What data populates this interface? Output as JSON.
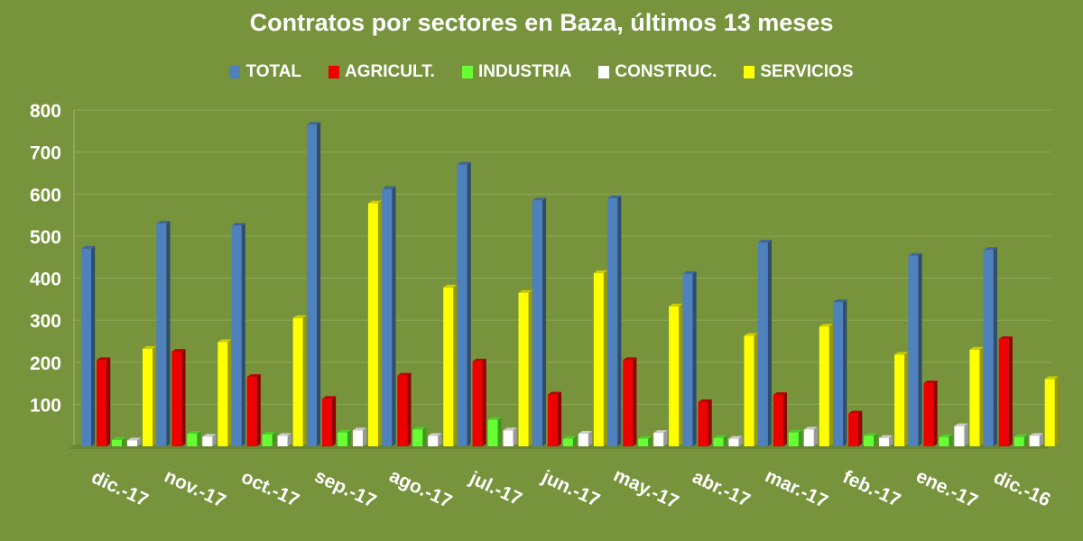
{
  "chart_data": {
    "type": "bar",
    "title": "Contratos por sectores en Baza, últimos 13 meses",
    "categories": [
      "dic.-17",
      "nov.-17",
      "oct.-17",
      "sep.-17",
      "ago.-17",
      "jul.-17",
      "jun.-17",
      "may.-17",
      "abr.-17",
      "mar.-17",
      "feb.-17",
      "ene.-17",
      "dic.-16"
    ],
    "series": [
      {
        "name": "TOTAL",
        "color": "#4f81bd",
        "values": [
          470,
          530,
          525,
          765,
          612,
          670,
          585,
          590,
          410,
          485,
          343,
          453,
          467
        ]
      },
      {
        "name": "AGRICULT.",
        "color": "#ee0000",
        "values": [
          205,
          225,
          165,
          113,
          168,
          202,
          123,
          205,
          105,
          122,
          78,
          150,
          255
        ]
      },
      {
        "name": "INDUSTRIA",
        "color": "#66ff33",
        "values": [
          15,
          30,
          28,
          33,
          40,
          63,
          18,
          18,
          20,
          33,
          25,
          22,
          22
        ]
      },
      {
        "name": "CONSTRUC.",
        "color": "#ffffff",
        "values": [
          14,
          23,
          25,
          38,
          25,
          38,
          30,
          32,
          18,
          40,
          20,
          48,
          25
        ]
      },
      {
        "name": "SERVICIOS",
        "color": "#ffff00",
        "values": [
          232,
          248,
          305,
          578,
          378,
          365,
          412,
          333,
          263,
          285,
          218,
          230,
          160
        ]
      }
    ],
    "ylim": [
      0,
      800
    ],
    "y_ticks": [
      100,
      200,
      300,
      400,
      500,
      600,
      700,
      800
    ],
    "grid": true,
    "legend_position": "top"
  }
}
